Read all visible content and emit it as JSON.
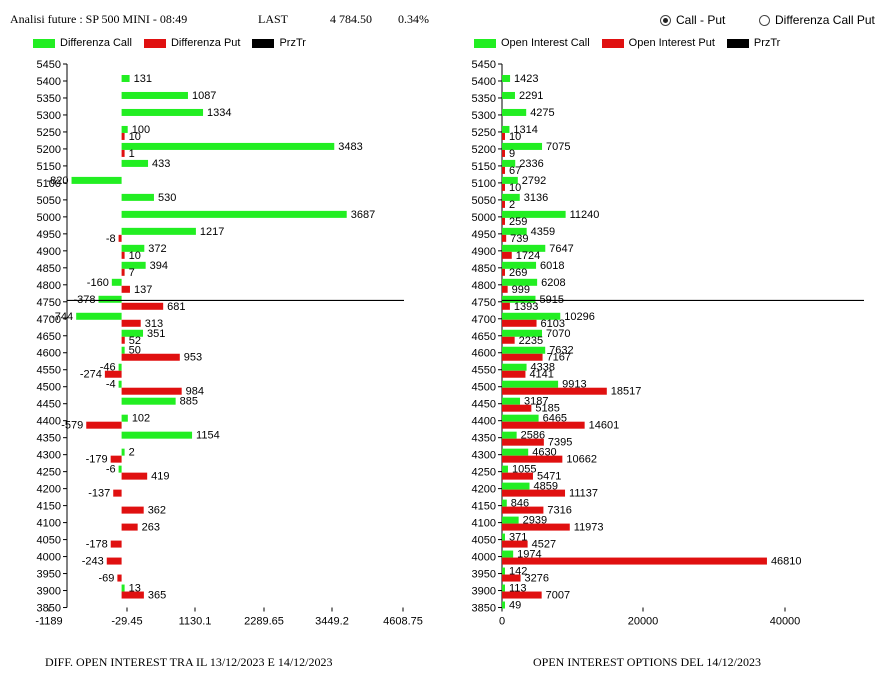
{
  "header": {
    "analysis_label": "Analisi future : SP 500 MINI - 08:49",
    "last_label": "LAST",
    "last_value": "4 784.50",
    "change": "0.34%"
  },
  "options": {
    "call_put": "Call - Put",
    "diff_call_put": "Differenza Call Put",
    "selected": "call_put"
  },
  "colors": {
    "call": "#22ee22",
    "put": "#e01010",
    "price": "#000000"
  },
  "captions": {
    "left": "DIFF. OPEN INTEREST TRA IL 13/12/2023 E 14/12/2023",
    "right": "OPEN INTEREST OPTIONS DEL 14/12/2023"
  },
  "chart_data": [
    {
      "type": "bar",
      "orientation": "horizontal",
      "legend": [
        "Differenza Call",
        "Differenza Put",
        "PrzTr"
      ],
      "categories": [
        "5450",
        "5400",
        "5350",
        "5300",
        "5250",
        "5200",
        "5150",
        "5100",
        "5050",
        "5000",
        "4950",
        "4900",
        "4850",
        "4800",
        "4750",
        "4700",
        "4650",
        "4600",
        "4550",
        "4500",
        "4450",
        "4400",
        "4350",
        "4300",
        "4250",
        "4200",
        "4150",
        "4100",
        "4050",
        "4000",
        "3950",
        "3900",
        "3850"
      ],
      "series": [
        {
          "name": "Differenza Call",
          "values": [
            null,
            131,
            1087,
            1334,
            100,
            3483,
            433,
            -820,
            530,
            3687,
            1217,
            372,
            394,
            -160,
            -378,
            -744,
            351,
            50,
            -46,
            -4,
            885,
            102,
            1154,
            2,
            -6,
            null,
            null,
            null,
            null,
            null,
            null,
            13,
            null
          ]
        },
        {
          "name": "Differenza Put",
          "values": [
            null,
            null,
            null,
            null,
            10,
            1,
            null,
            null,
            null,
            null,
            -8,
            10,
            7,
            137,
            681,
            313,
            52,
            953,
            -274,
            984,
            null,
            -579,
            null,
            -179,
            419,
            -137,
            362,
            263,
            -178,
            -243,
            -69,
            365,
            null
          ]
        }
      ],
      "price_level": "4784.50",
      "xticks": [
        "-1189",
        "-29.45",
        "1130.1",
        "2289.65",
        "3449.2",
        "4608.75"
      ],
      "xlim": [
        -1189,
        4608.75
      ]
    },
    {
      "type": "bar",
      "orientation": "horizontal",
      "legend": [
        "Open Interest Call",
        "Open Interest Put",
        "PrzTr"
      ],
      "categories": [
        "5450",
        "5400",
        "5350",
        "5300",
        "5250",
        "5200",
        "5150",
        "5100",
        "5050",
        "5000",
        "4950",
        "4900",
        "4850",
        "4800",
        "4750",
        "4700",
        "4650",
        "4600",
        "4550",
        "4500",
        "4450",
        "4400",
        "4350",
        "4300",
        "4250",
        "4200",
        "4150",
        "4100",
        "4050",
        "4000",
        "3950",
        "3900",
        "3850"
      ],
      "series": [
        {
          "name": "Open Interest Call",
          "values": [
            null,
            1423,
            2291,
            4275,
            1314,
            7075,
            2336,
            2792,
            3136,
            11240,
            4359,
            7647,
            6018,
            6208,
            5915,
            10296,
            7070,
            7632,
            4338,
            9913,
            3187,
            6465,
            2586,
            4630,
            1055,
            4859,
            846,
            2939,
            371,
            1974,
            142,
            113,
            49
          ]
        },
        {
          "name": "Open Interest Put",
          "values": [
            null,
            null,
            null,
            null,
            10,
            9,
            67,
            10,
            2,
            259,
            739,
            1724,
            269,
            999,
            1393,
            6103,
            2235,
            7167,
            4141,
            18517,
            5185,
            14601,
            7395,
            10662,
            5471,
            11137,
            7316,
            11973,
            4527,
            46810,
            3276,
            7007,
            null
          ]
        }
      ],
      "price_level": "4784.50",
      "xticks": [
        "0",
        "20000",
        "40000"
      ],
      "xlim": [
        0,
        50000
      ]
    }
  ]
}
